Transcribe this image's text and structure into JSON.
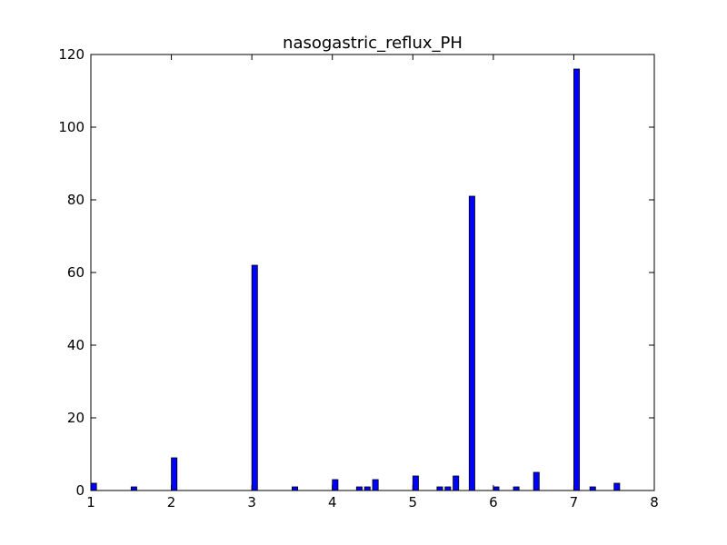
{
  "chart_data": {
    "type": "bar",
    "title": "nasogastric_reflux_PH",
    "xlabel": "",
    "ylabel": "",
    "xlim": [
      1,
      8
    ],
    "ylim": [
      0,
      120
    ],
    "x_ticks": [
      1,
      2,
      3,
      4,
      5,
      6,
      7,
      8
    ],
    "y_ticks": [
      0,
      20,
      40,
      60,
      80,
      100,
      120
    ],
    "bar_width": 0.07,
    "bar_color": "#0000ff",
    "bar_edge_color": "#000000",
    "grid": false,
    "bars": [
      {
        "x": 1.0,
        "value": 2
      },
      {
        "x": 1.5,
        "value": 1
      },
      {
        "x": 2.0,
        "value": 9
      },
      {
        "x": 3.0,
        "value": 62
      },
      {
        "x": 3.5,
        "value": 1
      },
      {
        "x": 4.0,
        "value": 3
      },
      {
        "x": 4.3,
        "value": 1
      },
      {
        "x": 4.4,
        "value": 1
      },
      {
        "x": 4.5,
        "value": 3
      },
      {
        "x": 5.0,
        "value": 4
      },
      {
        "x": 5.3,
        "value": 1
      },
      {
        "x": 5.4,
        "value": 1
      },
      {
        "x": 5.5,
        "value": 4
      },
      {
        "x": 5.7,
        "value": 81
      },
      {
        "x": 6.0,
        "value": 1
      },
      {
        "x": 6.25,
        "value": 1
      },
      {
        "x": 6.5,
        "value": 5
      },
      {
        "x": 7.0,
        "value": 116
      },
      {
        "x": 7.2,
        "value": 1
      },
      {
        "x": 7.5,
        "value": 2
      }
    ]
  }
}
